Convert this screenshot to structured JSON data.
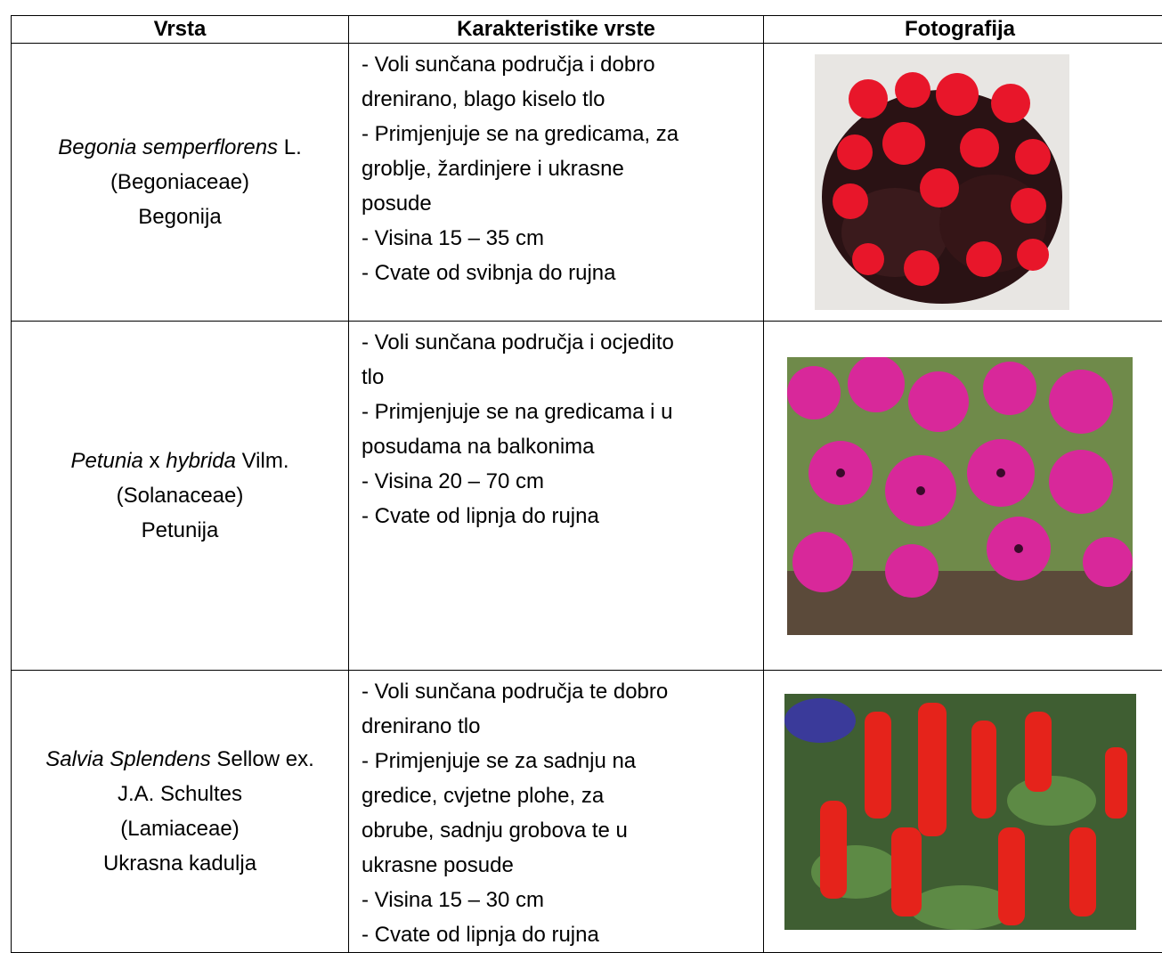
{
  "table": {
    "header": [
      "Vrsta",
      "Karakteristike vrste",
      "Fotografija"
    ],
    "rows": [
      {
        "species": [
          [
            {
              "text": "Begonia semperflorens",
              "italic": true
            },
            {
              "text": " L.",
              "italic": false
            }
          ],
          [
            {
              "text": "(Begoniaceae)",
              "italic": false
            }
          ],
          [
            {
              "text": "Begonija",
              "italic": false
            }
          ]
        ],
        "characteristics": [
          "- Voli sunčana područja i dobro",
          "drenirano, blago kiselo tlo",
          "- Primjenjuje se na gredicama, za",
          "groblje, žardinjere i ukrasne",
          "posude",
          "- Visina 15 – 35 cm",
          "- Cvate od svibnja do rujna"
        ]
      },
      {
        "species": [
          [
            {
              "text": "Petunia",
              "italic": true
            },
            {
              "text": " x ",
              "italic": false
            },
            {
              "text": "hybrida",
              "italic": true
            },
            {
              "text": " Vilm.",
              "italic": false
            }
          ],
          [
            {
              "text": "(Solanaceae)",
              "italic": false
            }
          ],
          [
            {
              "text": "Petunija",
              "italic": false
            }
          ]
        ],
        "characteristics": [
          "- Voli sunčana područja i ocjedito",
          "tlo",
          "- Primjenjuje se na gredicama i u",
          "posudama na balkonima",
          "- Visina 20 – 70 cm",
          "- Cvate od lipnja do rujna"
        ]
      },
      {
        "species": [
          [
            {
              "text": "Salvia Splendens",
              "italic": true
            },
            {
              "text": " Sellow ex.",
              "italic": false
            }
          ],
          [
            {
              "text": "J.A. Schultes",
              "italic": false
            }
          ],
          [
            {
              "text": "(Lamiaceae)",
              "italic": false
            }
          ],
          [
            {
              "text": "Ukrasna kadulja",
              "italic": false
            }
          ]
        ],
        "characteristics": [
          "- Voli sunčana područja te dobro",
          "drenirano tlo",
          "- Primjenjuje se za sadnju na",
          "gredice, cvjetne plohe, za",
          "obrube, sadnju grobova te u",
          "ukrasne posude",
          "- Visina 15 – 30 cm",
          "- Cvate od lipnja do rujna"
        ]
      }
    ]
  }
}
